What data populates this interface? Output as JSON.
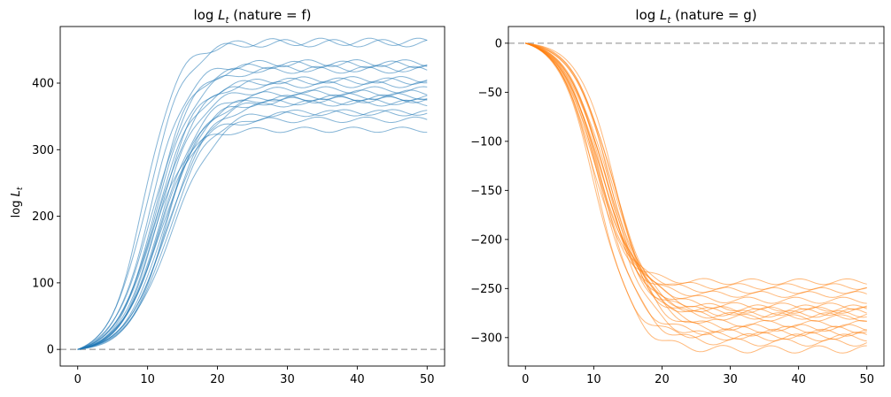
{
  "chart_data": [
    {
      "type": "line",
      "title": "log L_t (nature = f)",
      "title_parts": {
        "prefix": "log ",
        "var": "L",
        "sub": "t",
        "suffix": " (nature = f)"
      },
      "xlabel": "",
      "ylabel": "log L_t",
      "ylabel_parts": {
        "prefix": "log ",
        "var": "L",
        "sub": "t"
      },
      "xlim": [
        -2.5,
        52.5
      ],
      "ylim": [
        -25,
        485
      ],
      "xticks": [
        0,
        10,
        20,
        30,
        40,
        50
      ],
      "yticks": [
        0,
        100,
        200,
        300,
        400
      ],
      "grid": false,
      "reference_line": {
        "y": 0,
        "style": "dashed",
        "color": "#b0b0b0"
      },
      "series_color": "#1f77b4",
      "x_range": [
        0,
        50
      ],
      "midpoints": [
        9.5,
        10.0,
        10.4,
        10.8,
        11.0,
        11.2,
        11.4,
        11.6,
        11.8,
        12.0,
        12.2,
        12.4,
        12.6,
        12.8,
        13.0,
        13.4,
        11.5,
        10.6,
        12.9,
        11.1
      ],
      "widths": [
        2.4,
        2.7,
        2.6,
        2.9,
        2.5,
        2.8,
        3.0,
        2.6,
        2.7,
        2.9,
        3.1,
        2.8,
        2.6,
        3.0,
        2.9,
        3.2,
        2.7,
        2.5,
        3.0,
        2.8
      ],
      "final_values": [
        460,
        462,
        430,
        428,
        422,
        420,
        405,
        403,
        390,
        385,
        380,
        378,
        372,
        370,
        356,
        355,
        345,
        330,
        375,
        398
      ]
    },
    {
      "type": "line",
      "title": "log L_t (nature = g)",
      "title_parts": {
        "prefix": "log ",
        "var": "L",
        "sub": "t",
        "suffix": " (nature = g)"
      },
      "xlabel": "",
      "ylabel": "",
      "xlim": [
        -2.5,
        52.5
      ],
      "ylim": [
        -329,
        17
      ],
      "xticks": [
        0,
        10,
        20,
        30,
        40,
        50
      ],
      "yticks": [
        0,
        -50,
        -100,
        -150,
        -200,
        -250,
        -300
      ],
      "grid": false,
      "reference_line": {
        "y": 0,
        "style": "dashed",
        "color": "#b0b0b0"
      },
      "series_color": "#ff7f0e",
      "x_range": [
        0,
        50
      ],
      "midpoints": [
        9.6,
        10.0,
        10.3,
        10.6,
        10.9,
        11.1,
        11.4,
        11.7,
        12.0,
        12.3,
        12.6,
        12.9,
        13.2,
        11.0,
        10.2,
        12.1,
        11.5,
        10.7,
        12.5,
        11.8
      ],
      "widths": [
        2.5,
        2.7,
        2.8,
        2.6,
        2.9,
        3.0,
        2.7,
        2.8,
        3.1,
        2.6,
        2.9,
        3.0,
        2.7,
        2.8,
        2.6,
        3.0,
        2.9,
        2.7,
        2.8,
        3.1
      ],
      "final_values": [
        -243,
        -248,
        -252,
        -256,
        -262,
        -268,
        -272,
        -274,
        -276,
        -278,
        -286,
        -290,
        -292,
        -295,
        -298,
        -300,
        -305,
        -312,
        -270,
        -280
      ]
    }
  ]
}
